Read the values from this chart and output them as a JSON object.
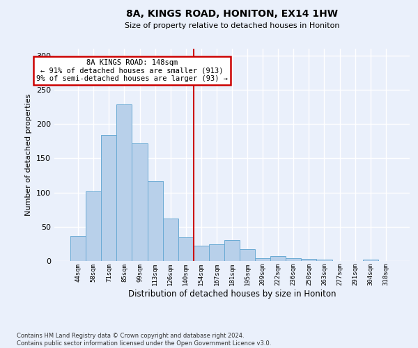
{
  "title": "8A, KINGS ROAD, HONITON, EX14 1HW",
  "subtitle": "Size of property relative to detached houses in Honiton",
  "xlabel": "Distribution of detached houses by size in Honiton",
  "ylabel": "Number of detached properties",
  "footnote": "Contains HM Land Registry data © Crown copyright and database right 2024.\nContains public sector information licensed under the Open Government Licence v3.0.",
  "categories": [
    "44sqm",
    "58sqm",
    "71sqm",
    "85sqm",
    "99sqm",
    "113sqm",
    "126sqm",
    "140sqm",
    "154sqm",
    "167sqm",
    "181sqm",
    "195sqm",
    "209sqm",
    "222sqm",
    "236sqm",
    "250sqm",
    "263sqm",
    "277sqm",
    "291sqm",
    "304sqm",
    "318sqm"
  ],
  "values": [
    37,
    102,
    184,
    229,
    172,
    117,
    62,
    35,
    22,
    24,
    30,
    17,
    4,
    7,
    4,
    3,
    2,
    0,
    0,
    2,
    0
  ],
  "bar_color": "#b8d0ea",
  "bar_edge_color": "#6aaad4",
  "vline_color": "#cc0000",
  "vline_x_index": 8,
  "annotation_text": "8A KINGS ROAD: 148sqm\n← 91% of detached houses are smaller (913)\n9% of semi-detached houses are larger (93) →",
  "annotation_box_facecolor": "#ffffff",
  "annotation_box_edgecolor": "#cc0000",
  "background_color": "#eaf0fb",
  "grid_color": "#ffffff",
  "ylim": [
    0,
    310
  ],
  "yticks": [
    0,
    50,
    100,
    150,
    200,
    250,
    300
  ]
}
